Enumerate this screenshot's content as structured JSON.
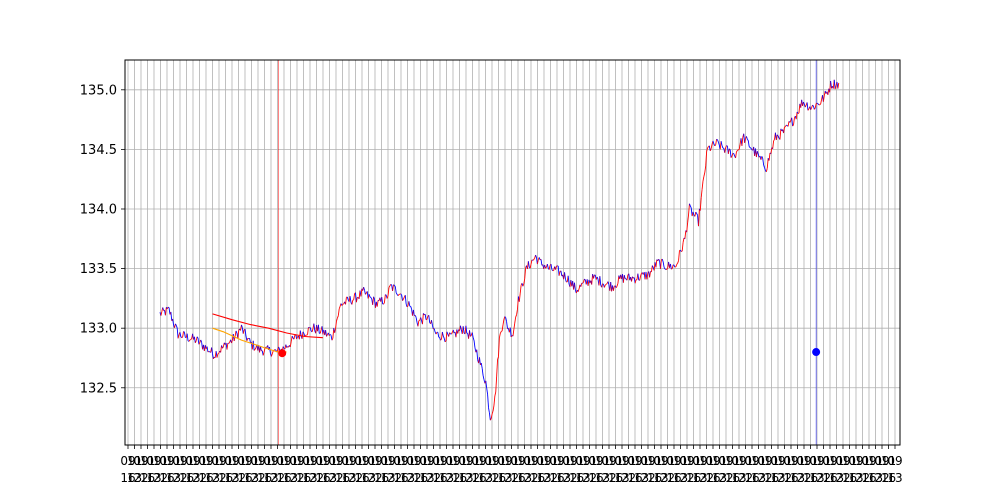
{
  "chart_data": {
    "type": "line",
    "title": "",
    "xlabel": "",
    "ylabel": "",
    "grid": true,
    "x_count": 780,
    "ylim": [
      132.02,
      135.25
    ],
    "yticks": [
      132.5,
      133.0,
      133.5,
      134.0,
      134.5,
      135.0
    ],
    "ytick_labels": [
      "132.5",
      "133.0",
      "133.5",
      "134.0",
      "134.5",
      "135.0"
    ],
    "xtick_labels_note": "Dense overlapping date/time labels at the bottom; illegible in the screenshot.",
    "price_anchors": [
      [
        0,
        133.12
      ],
      [
        10,
        133.15
      ],
      [
        20,
        132.95
      ],
      [
        40,
        132.9
      ],
      [
        60,
        132.78
      ],
      [
        80,
        132.9
      ],
      [
        90,
        133.0
      ],
      [
        100,
        132.87
      ],
      [
        110,
        132.82
      ],
      [
        130,
        132.8
      ],
      [
        140,
        132.85
      ],
      [
        150,
        132.92
      ],
      [
        160,
        132.97
      ],
      [
        170,
        133.0
      ],
      [
        180,
        132.97
      ],
      [
        190,
        132.92
      ],
      [
        200,
        133.2
      ],
      [
        215,
        133.25
      ],
      [
        225,
        133.3
      ],
      [
        240,
        133.2
      ],
      [
        250,
        133.25
      ],
      [
        255,
        133.35
      ],
      [
        265,
        133.3
      ],
      [
        275,
        133.2
      ],
      [
        285,
        133.05
      ],
      [
        295,
        133.1
      ],
      [
        305,
        132.95
      ],
      [
        320,
        132.92
      ],
      [
        335,
        133.0
      ],
      [
        345,
        132.92
      ],
      [
        350,
        132.8
      ],
      [
        360,
        132.55
      ],
      [
        365,
        132.25
      ],
      [
        370,
        132.4
      ],
      [
        375,
        132.9
      ],
      [
        380,
        133.1
      ],
      [
        385,
        133.0
      ],
      [
        390,
        132.95
      ],
      [
        395,
        133.2
      ],
      [
        400,
        133.35
      ],
      [
        405,
        133.5
      ],
      [
        415,
        133.6
      ],
      [
        420,
        133.55
      ],
      [
        430,
        133.5
      ],
      [
        440,
        133.48
      ],
      [
        450,
        133.42
      ],
      [
        460,
        133.32
      ],
      [
        470,
        133.38
      ],
      [
        480,
        133.42
      ],
      [
        490,
        133.38
      ],
      [
        500,
        133.35
      ],
      [
        510,
        133.42
      ],
      [
        525,
        133.42
      ],
      [
        540,
        133.45
      ],
      [
        550,
        133.55
      ],
      [
        560,
        133.52
      ],
      [
        570,
        133.52
      ],
      [
        580,
        133.75
      ],
      [
        585,
        134.0
      ],
      [
        590,
        133.95
      ],
      [
        595,
        133.9
      ],
      [
        600,
        134.2
      ],
      [
        605,
        134.5
      ],
      [
        615,
        134.55
      ],
      [
        625,
        134.5
      ],
      [
        635,
        134.45
      ],
      [
        645,
        134.6
      ],
      [
        650,
        134.55
      ],
      [
        660,
        134.45
      ],
      [
        670,
        134.35
      ],
      [
        680,
        134.6
      ],
      [
        690,
        134.65
      ],
      [
        700,
        134.75
      ],
      [
        710,
        134.9
      ],
      [
        720,
        134.85
      ],
      [
        730,
        134.9
      ],
      [
        735,
        134.95
      ],
      [
        742,
        135.05
      ],
      [
        750,
        135.05
      ]
    ],
    "series": [
      {
        "values_ref": "price_anchors",
        "color_up": "#ff0000",
        "color_down": "#0000ff"
      },
      {
        "points": [
          [
            58,
            133.12
          ],
          [
            80,
            133.07
          ],
          [
            100,
            133.03
          ],
          [
            120,
            133.0
          ],
          [
            140,
            132.96
          ],
          [
            160,
            132.93
          ],
          [
            180,
            132.92
          ]
        ],
        "color": "#ff0000"
      },
      {
        "points": [
          [
            58,
            133.0
          ],
          [
            70,
            132.97
          ],
          [
            90,
            132.9
          ],
          [
            110,
            132.85
          ],
          [
            130,
            132.8
          ],
          [
            140,
            132.8
          ]
        ],
        "color": "#ffa500"
      }
    ],
    "markers": [
      {
        "x": 135,
        "y": 132.79,
        "color": "#ff0000"
      },
      {
        "x": 725,
        "y": 132.8,
        "color": "#0000ff"
      }
    ],
    "vlines": [
      {
        "x": 131,
        "color": "#ff0000"
      },
      {
        "x": 725,
        "color": "#0000ff"
      }
    ]
  }
}
